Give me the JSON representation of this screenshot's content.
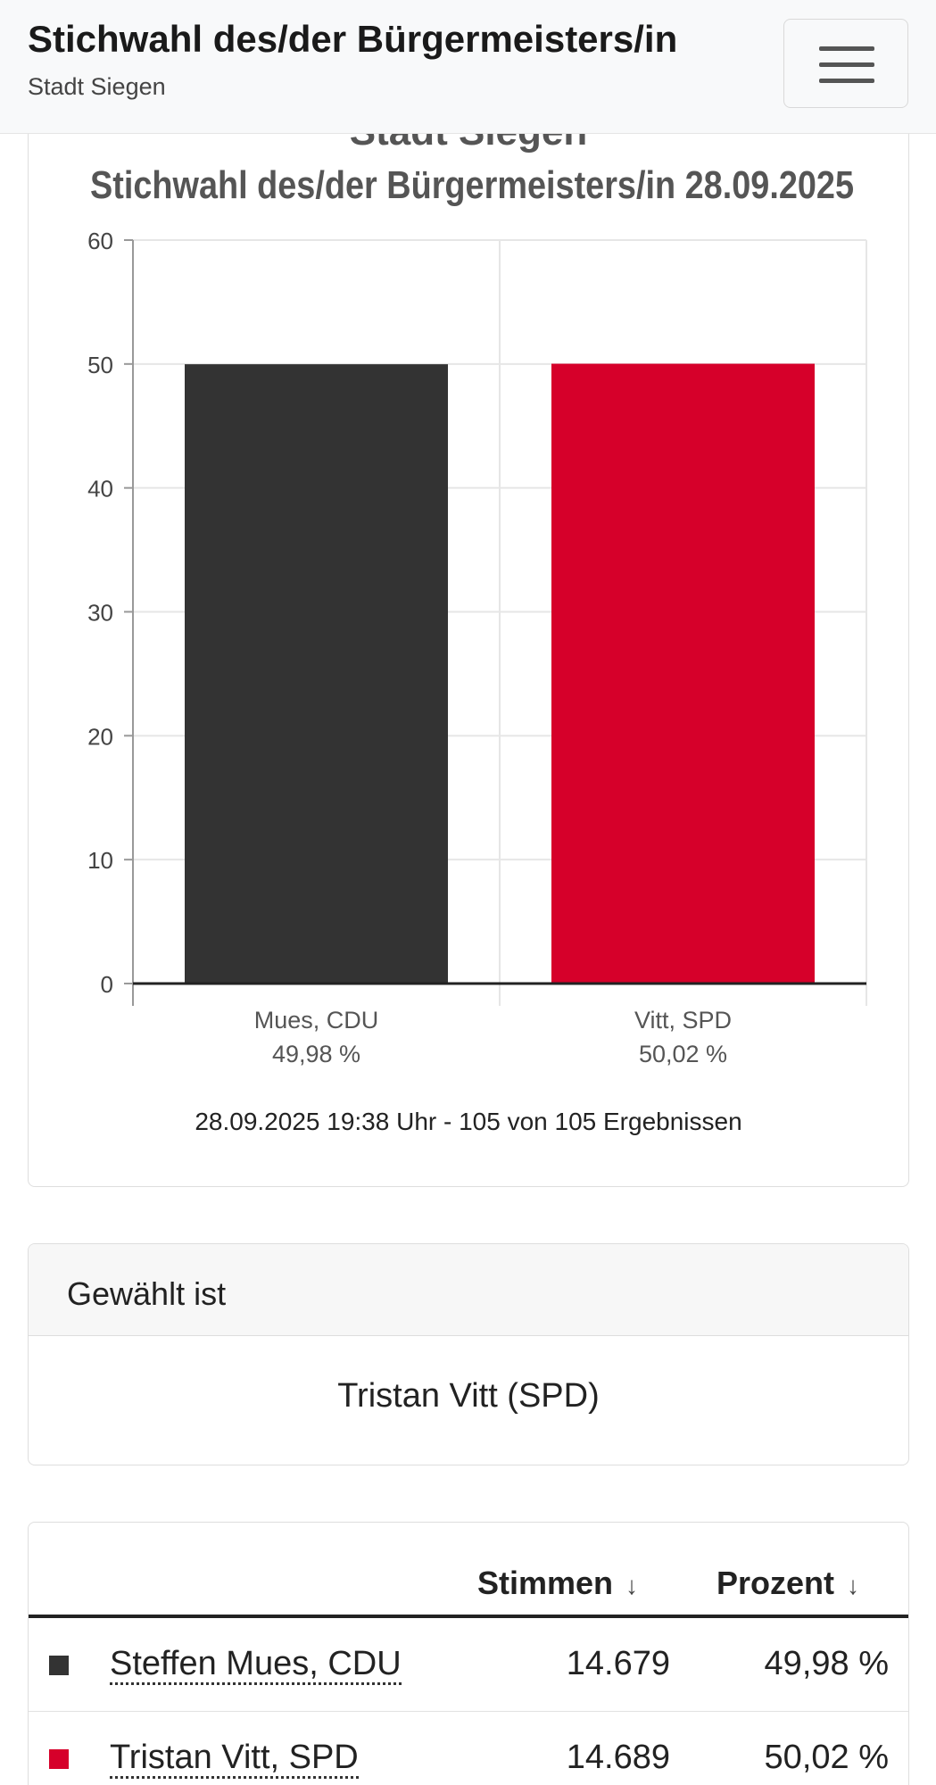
{
  "header": {
    "title": "Stichwahl des/der Bürgermeisters/in",
    "subtitle": "Stadt Siegen"
  },
  "chart_card": {
    "title_top": "Stadt Siegen",
    "title": "Stichwahl des/der Bürgermeisters/in 28.09.2025",
    "footer": "28.09.2025 19:38 Uhr - 105 von 105 Ergebnissen"
  },
  "chart_data": {
    "type": "bar",
    "title": "Stichwahl des/der Bürgermeisters/in 28.09.2025",
    "categories": [
      "Mues, CDU",
      "Vitt, SPD"
    ],
    "category_sublabels": [
      "49,98 %",
      "50,02 %"
    ],
    "values": [
      49.98,
      50.02
    ],
    "colors": [
      "#333333",
      "#d6002a"
    ],
    "ylim": [
      0,
      60
    ],
    "yticks": [
      "0",
      "10",
      "20",
      "30",
      "40",
      "50",
      "60"
    ],
    "grid": true,
    "xlabel": "",
    "ylabel": ""
  },
  "elected": {
    "header": "Gewählt ist",
    "winner": "Tristan Vitt (SPD)"
  },
  "table": {
    "columns": {
      "votes": "Stimmen",
      "percent": "Prozent",
      "sort_arrow": "↓"
    },
    "rows": [
      {
        "name": "Steffen Mues, CDU",
        "votes": "14.679",
        "percent": "49,98 %",
        "color": "#333333"
      },
      {
        "name": "Tristan Vitt, SPD",
        "votes": "14.689",
        "percent": "50,02 %",
        "color": "#d6002a"
      }
    ]
  },
  "icons": {
    "menu": "hamburger-menu-icon",
    "sort": "arrow-down-icon",
    "legend": "color-square-icon"
  }
}
